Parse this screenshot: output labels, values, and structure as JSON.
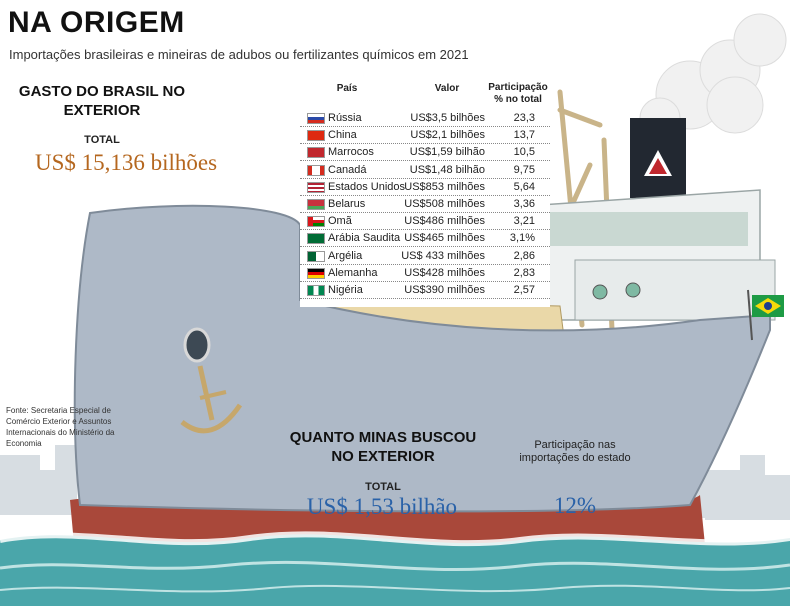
{
  "header": {
    "title": "NA ORIGEM",
    "subtitle": "Importações brasileiras e mineiras de adubos ou fertilizantes químicos em 2021"
  },
  "brasil": {
    "heading": "GASTO DO BRASIL NO EXTERIOR",
    "total_label": "TOTAL",
    "total_value": "US$ 15,136 bilhões"
  },
  "source": "Fonte: Secretaria Especial de Comércio Exterior e Assuntos Internacionais do Ministério da Economia",
  "minas": {
    "heading": "QUANTO MINAS BUSCOU NO EXTERIOR",
    "total_label": "TOTAL",
    "total_value": "US$ 1,53 bilhão",
    "share_label": "Participação nas importações do estado",
    "share_value": "12%"
  },
  "chart_data": {
    "type": "table",
    "columns": [
      "País",
      "Valor",
      "Participação % no total"
    ],
    "rows": [
      {
        "country": "Rússia",
        "value": "US$3,5 bilhões",
        "share": "23,3",
        "flag": "russia"
      },
      {
        "country": "China",
        "value": "US$2,1 bilhões",
        "share": "13,7",
        "flag": "china"
      },
      {
        "country": "Marrocos",
        "value": "US$1,59 bilhão",
        "share": "10,5",
        "flag": "morocco"
      },
      {
        "country": "Canadá",
        "value": "US$1,48 bilhão",
        "share": "9,75",
        "flag": "canada"
      },
      {
        "country": "Estados Unidos",
        "value": "US$853 milhões",
        "share": "5,64",
        "flag": "usa"
      },
      {
        "country": "Belarus",
        "value": "US$508 milhões",
        "share": "3,36",
        "flag": "belarus"
      },
      {
        "country": "Omã",
        "value": "US$486 milhões",
        "share": "3,21",
        "flag": "oman"
      },
      {
        "country": "Arábia Saudita",
        "value": "US$465 milhões",
        "share": "3,1%",
        "flag": "saudi"
      },
      {
        "country": "Argélia",
        "value": "US$ 433 milhões",
        "share": "2,86",
        "flag": "algeria"
      },
      {
        "country": "Alemanha",
        "value": "US$428 milhões",
        "share": "2,83",
        "flag": "germany"
      },
      {
        "country": "Nigéria",
        "value": "US$390 milhões",
        "share": "2,57",
        "flag": "nigeria"
      }
    ]
  }
}
